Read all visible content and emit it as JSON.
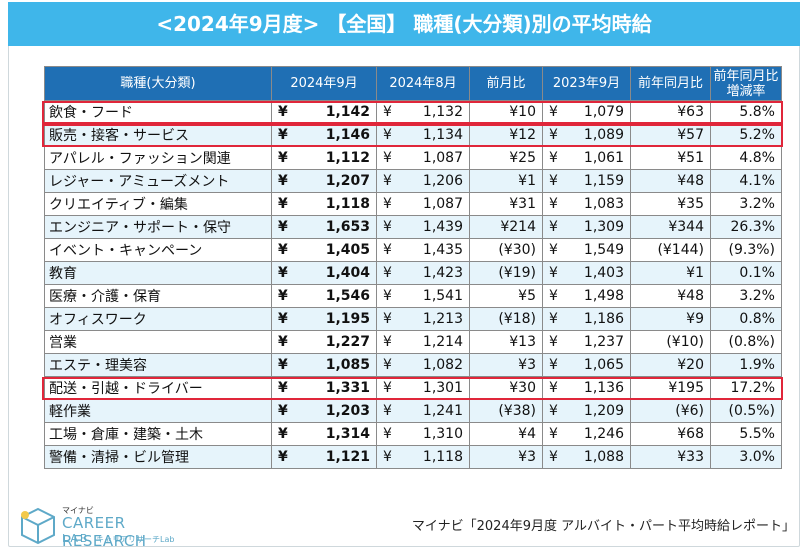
{
  "title": "<2024年9月度> 【全国】 職種(大分類)別の平均時給",
  "chart_data": {
    "type": "table",
    "columns": [
      "職種(大分類)",
      "2024年9月",
      "2024年8月",
      "前月比",
      "2023年9月",
      "前年同月比",
      "前年同月比 増減率"
    ],
    "header_labels": {
      "category": "職種(大分類)",
      "sep2024": "2024年9月",
      "aug2024": "2024年8月",
      "mom": "前月比",
      "sep2023": "2023年9月",
      "yoy": "前年同月比",
      "yoy_rate_line1": "前年同月比",
      "yoy_rate_line2": "増減率"
    },
    "currency_symbol": "¥",
    "rows": [
      {
        "category": "飲食・フード",
        "sep2024": "1,142",
        "aug2024": "1,132",
        "mom": "¥10",
        "sep2023": "1,079",
        "yoy": "¥63",
        "yoy_rate": "5.8%",
        "highlight": true
      },
      {
        "category": "販売・接客・サービス",
        "sep2024": "1,146",
        "aug2024": "1,134",
        "mom": "¥12",
        "sep2023": "1,089",
        "yoy": "¥57",
        "yoy_rate": "5.2%",
        "highlight": true
      },
      {
        "category": "アパレル・ファッション関連",
        "sep2024": "1,112",
        "aug2024": "1,087",
        "mom": "¥25",
        "sep2023": "1,061",
        "yoy": "¥51",
        "yoy_rate": "4.8%"
      },
      {
        "category": "レジャー・アミューズメント",
        "sep2024": "1,207",
        "aug2024": "1,206",
        "mom": "¥1",
        "sep2023": "1,159",
        "yoy": "¥48",
        "yoy_rate": "4.1%"
      },
      {
        "category": "クリエイティブ・編集",
        "sep2024": "1,118",
        "aug2024": "1,087",
        "mom": "¥31",
        "sep2023": "1,083",
        "yoy": "¥35",
        "yoy_rate": "3.2%"
      },
      {
        "category": "エンジニア・サポート・保守",
        "sep2024": "1,653",
        "aug2024": "1,439",
        "mom": "¥214",
        "sep2023": "1,309",
        "yoy": "¥344",
        "yoy_rate": "26.3%"
      },
      {
        "category": "イベント・キャンペーン",
        "sep2024": "1,405",
        "aug2024": "1,435",
        "mom": "(¥30)",
        "sep2023": "1,549",
        "yoy": "(¥144)",
        "yoy_rate": "(9.3%)",
        "mom_neg": true,
        "yoy_neg": true,
        "rate_neg": true
      },
      {
        "category": "教育",
        "sep2024": "1,404",
        "aug2024": "1,423",
        "mom": "(¥19)",
        "sep2023": "1,403",
        "yoy": "¥1",
        "yoy_rate": "0.1%",
        "mom_neg": true
      },
      {
        "category": "医療・介護・保育",
        "sep2024": "1,546",
        "aug2024": "1,541",
        "mom": "¥5",
        "sep2023": "1,498",
        "yoy": "¥48",
        "yoy_rate": "3.2%"
      },
      {
        "category": "オフィスワーク",
        "sep2024": "1,195",
        "aug2024": "1,213",
        "mom": "(¥18)",
        "sep2023": "1,186",
        "yoy": "¥9",
        "yoy_rate": "0.8%",
        "mom_neg": true
      },
      {
        "category": "営業",
        "sep2024": "1,227",
        "aug2024": "1,214",
        "mom": "¥13",
        "sep2023": "1,237",
        "yoy": "(¥10)",
        "yoy_rate": "(0.8%)",
        "yoy_neg": true,
        "rate_neg": true
      },
      {
        "category": "エステ・理美容",
        "sep2024": "1,085",
        "aug2024": "1,082",
        "mom": "¥3",
        "sep2023": "1,065",
        "yoy": "¥20",
        "yoy_rate": "1.9%"
      },
      {
        "category": "配送・引越・ドライバー",
        "sep2024": "1,331",
        "aug2024": "1,301",
        "mom": "¥30",
        "sep2023": "1,136",
        "yoy": "¥195",
        "yoy_rate": "17.2%",
        "highlight": true
      },
      {
        "category": "軽作業",
        "sep2024": "1,203",
        "aug2024": "1,241",
        "mom": "(¥38)",
        "sep2023": "1,209",
        "yoy": "(¥6)",
        "yoy_rate": "(0.5%)",
        "mom_neg": true,
        "yoy_neg": true,
        "rate_neg": true
      },
      {
        "category": "工場・倉庫・建築・土木",
        "sep2024": "1,314",
        "aug2024": "1,310",
        "mom": "¥4",
        "sep2023": "1,246",
        "yoy": "¥68",
        "yoy_rate": "5.5%"
      },
      {
        "category": "警備・清掃・ビル管理",
        "sep2024": "1,121",
        "aug2024": "1,118",
        "mom": "¥3",
        "sep2023": "1,088",
        "yoy": "¥33",
        "yoy_rate": "3.0%"
      }
    ]
  },
  "logo": {
    "small": "マイナビ",
    "main": "CAREER RESEARCH",
    "lab": "LAB",
    "kana": "キャリアリサーチLab"
  },
  "source": "マイナビ「2024年9月度 アルバイト・パート平均時給レポート」",
  "colors": {
    "title_bg": "#3fb6ea",
    "header_bg": "#1f6fb4",
    "negative": "#e23b3b",
    "highlight_border": "#e0263a"
  }
}
